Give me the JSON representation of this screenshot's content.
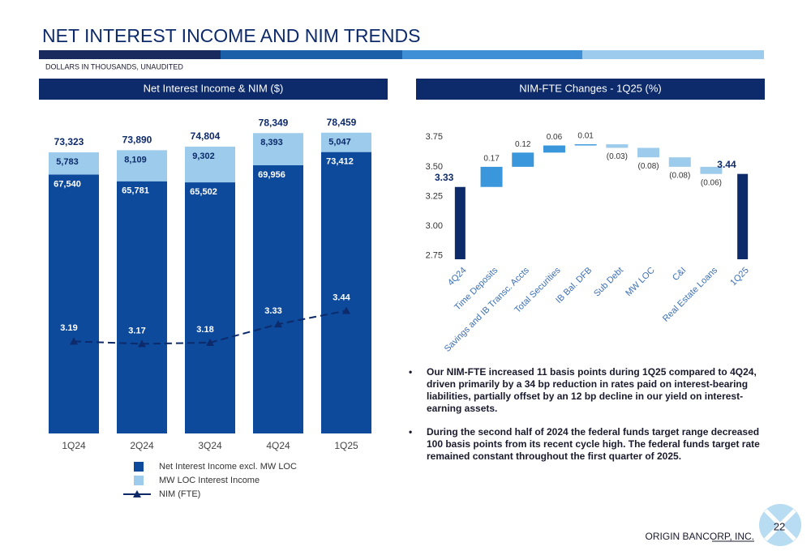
{
  "header": {
    "title": "NET INTEREST INCOME AND NIM TRENDS",
    "subtitle": "DOLLARS IN THOUSANDS, UNAUDITED"
  },
  "chart_data": [
    {
      "type": "stacked-bar-line",
      "title": "Net Interest Income & NIM ($)",
      "categories": [
        "1Q24",
        "2Q24",
        "3Q24",
        "4Q24",
        "1Q25"
      ],
      "ylim": [
        0,
        82000
      ],
      "y2lim": [
        2.44,
        5.0
      ],
      "series": [
        {
          "name": "Net Interest Income excl. MW LOC",
          "color": "#0d4a9c",
          "values": [
            67540,
            65781,
            65502,
            69956,
            73412
          ],
          "value_labels": [
            "67,540",
            "65,781",
            "65,502",
            "69,956",
            "73,412"
          ]
        },
        {
          "name": "MW LOC Interest Income",
          "color": "#9ccbec",
          "values": [
            5783,
            8109,
            9302,
            8393,
            5047
          ],
          "value_labels": [
            "5,783",
            "8,109",
            "9,302",
            "8,393",
            "5,047"
          ]
        },
        {
          "name": "NIM (FTE)",
          "color": "#0d2a6b",
          "axis": "y2",
          "values": [
            3.19,
            3.17,
            3.18,
            3.33,
            3.44
          ]
        }
      ],
      "totals": [
        73323,
        73890,
        74804,
        78349,
        78459
      ],
      "total_labels": [
        "73,323",
        "73,890",
        "74,804",
        "78,349",
        "78,459"
      ]
    },
    {
      "type": "waterfall",
      "title": "NIM-FTE Changes - 1Q25 (%)",
      "categories": [
        "4Q24",
        "Time Deposits",
        "Savings and IB Transc. Accts",
        "Total Securities",
        "IB Bal. DFB",
        "Sub Debt",
        "MW LOC",
        "C&I",
        "Real Estate Loans",
        "1Q25"
      ],
      "values": [
        3.33,
        0.17,
        0.12,
        0.06,
        0.01,
        -0.03,
        -0.08,
        -0.08,
        -0.06,
        3.44
      ],
      "value_labels": [
        "3.33",
        "0.17",
        "0.12",
        "0.06",
        "0.01",
        "(0.03)",
        "(0.08)",
        "(0.08)",
        "(0.06)",
        "3.44"
      ],
      "colors": {
        "total": "#0d2a6b",
        "increase": "#3b97dc",
        "decrease": "#9ccbec"
      },
      "ylim": [
        2.72,
        3.8
      ],
      "yticks": [
        {
          "value": 2.75,
          "label": "2.75"
        },
        {
          "value": 3.0,
          "label": "3.00"
        },
        {
          "value": 3.25,
          "label": "3.25"
        },
        {
          "value": 3.5,
          "label": "3.50"
        },
        {
          "value": 3.75,
          "label": "3.75"
        }
      ]
    }
  ],
  "bullets": [
    "Our NIM-FTE increased 11 basis points during 1Q25 compared to 4Q24, driven primarily by a 34 bp reduction in rates paid on interest-bearing liabilities, partially offset by an 12 bp decline in our yield on interest-earning assets.",
    "During the second half of 2024 the federal funds target range decreased 100 basis points from its recent cycle high. The federal funds target rate remained constant throughout the first quarter of 2025."
  ],
  "footer": {
    "company": "ORIGIN BANCORP, INC.",
    "page": "22"
  }
}
